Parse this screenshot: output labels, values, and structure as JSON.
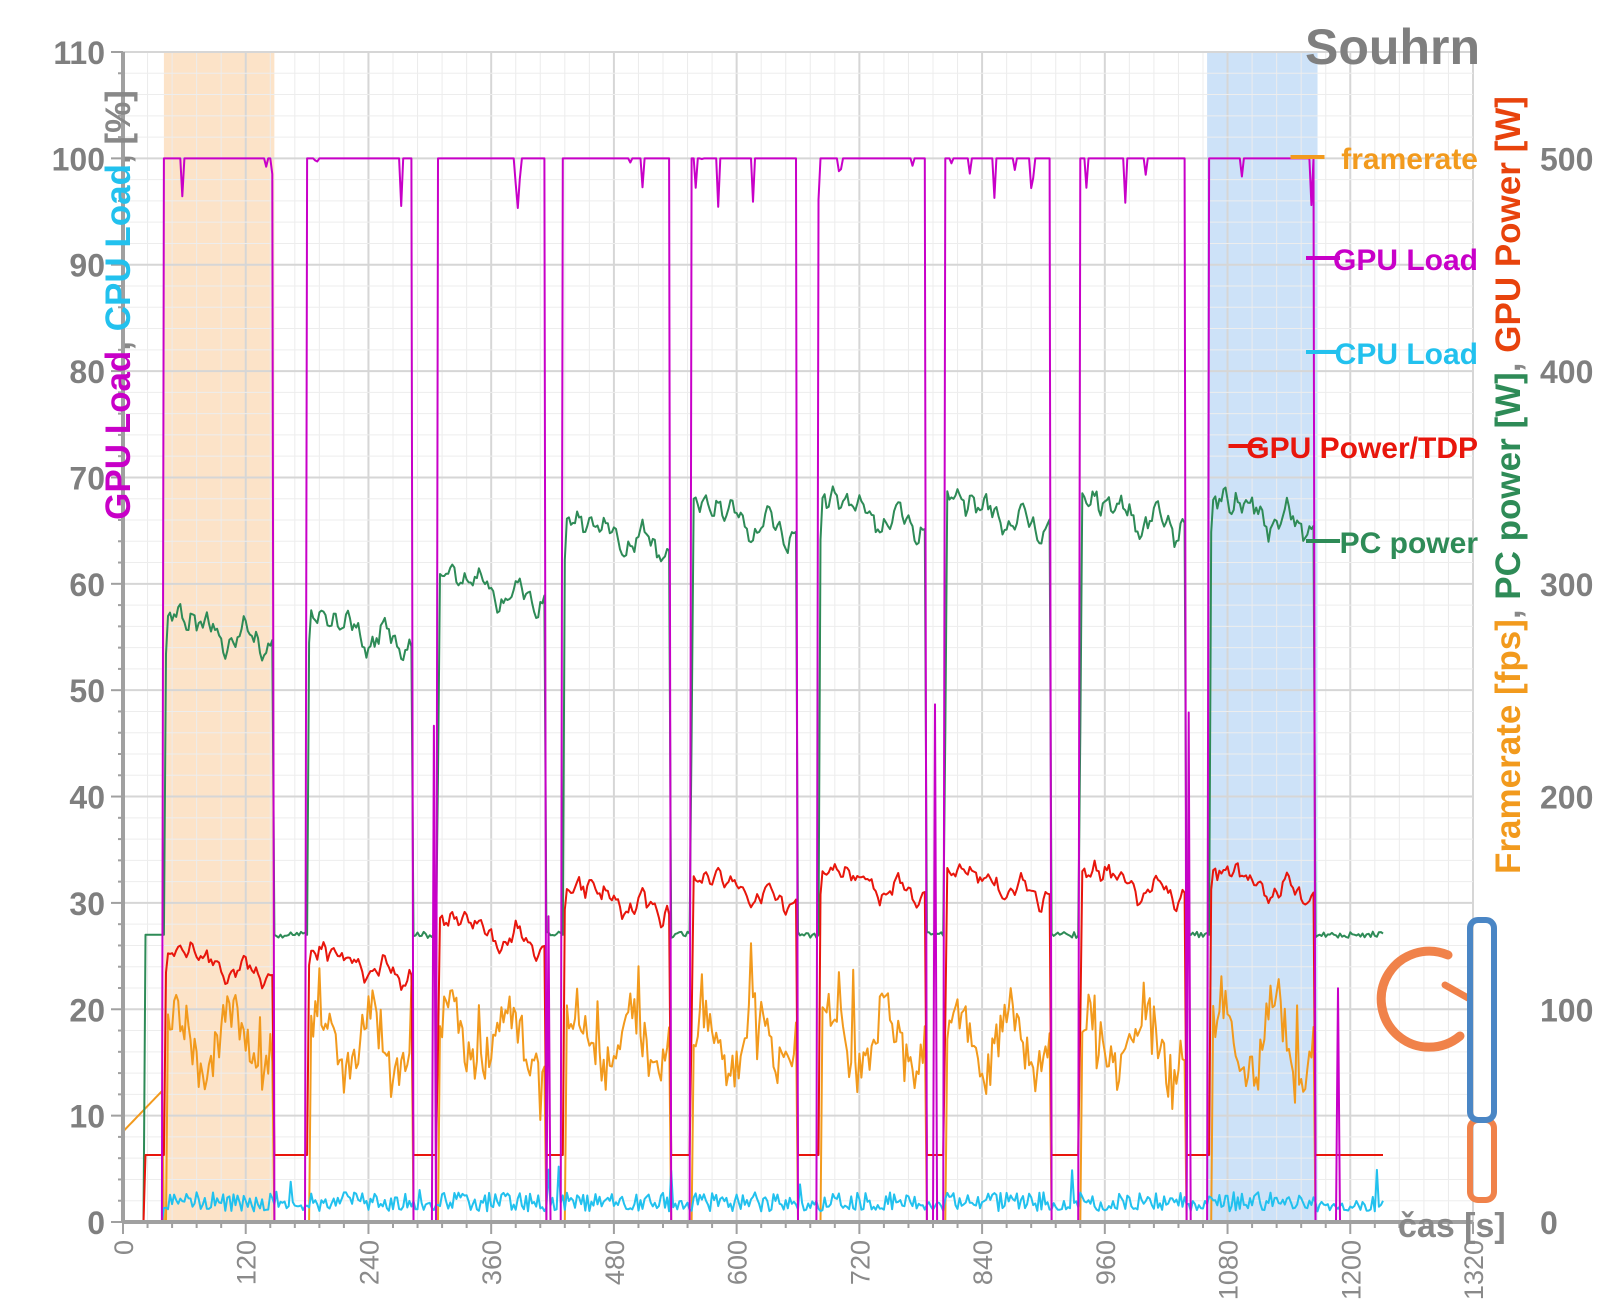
{
  "chart_data": {
    "type": "line",
    "title": "Souhrn",
    "xlabel": "čas [s]",
    "ylabel_left": {
      "parts": [
        {
          "text": "GPU Load",
          "color": "#c800c8"
        },
        {
          "text": ", ",
          "color": "#888888"
        },
        {
          "text": "CPU Load",
          "color": "#22c1ee"
        },
        {
          "text": ", ",
          "color": "#888888"
        },
        {
          "text": "[%]",
          "color": "#888888"
        }
      ]
    },
    "ylabel_right": {
      "parts": [
        {
          "text": "Framerate [fps]",
          "color": "#f29a1d"
        },
        {
          "text": ", ",
          "color": "#888888"
        },
        {
          "text": "PC power [W]",
          "color": "#2e8b57"
        },
        {
          "text": ", ",
          "color": "#888888"
        },
        {
          "text": "GPU Power [W]",
          "color": "#e8430c"
        }
      ]
    },
    "xlim": [
      0,
      1320
    ],
    "x_ticks": [
      "0",
      "120",
      "240",
      "360",
      "480",
      "600",
      "720",
      "840",
      "960",
      "1080",
      "1200",
      "1320"
    ],
    "ylim_left": [
      0,
      110
    ],
    "y_ticks_left": [
      "0",
      "10",
      "20",
      "30",
      "40",
      "50",
      "60",
      "70",
      "80",
      "90",
      "100",
      "110"
    ],
    "ylim_right": [
      0,
      550
    ],
    "y_ticks_right": [
      "0",
      "100",
      "200",
      "300",
      "400",
      "500"
    ],
    "grid": true,
    "legend_position": "right",
    "highlight_bands": [
      {
        "x": [
          40,
          148
        ],
        "color": "#fbd9b6"
      },
      {
        "x": [
          1060,
          1168
        ],
        "color": "#bcd8f5"
      }
    ],
    "segments": [
      {
        "start": 40,
        "end": 146,
        "gpu_power_level": 24.5,
        "pc_power_level": 55
      },
      {
        "start": 180,
        "end": 282,
        "gpu_power_level": 24.5,
        "pc_power_level": 55
      },
      {
        "start": 307,
        "end": 413,
        "gpu_power_level": 27.5,
        "pc_power_level": 59
      },
      {
        "start": 430,
        "end": 535,
        "gpu_power_level": 30.5,
        "pc_power_level": 64
      },
      {
        "start": 555,
        "end": 658,
        "gpu_power_level": 31.5,
        "pc_power_level": 65.5
      },
      {
        "start": 680,
        "end": 785,
        "gpu_power_level": 32,
        "pc_power_level": 66
      },
      {
        "start": 803,
        "end": 906,
        "gpu_power_level": 32,
        "pc_power_level": 66
      },
      {
        "start": 935,
        "end": 1038,
        "gpu_power_level": 32,
        "pc_power_level": 66
      },
      {
        "start": 1062,
        "end": 1165,
        "gpu_power_level": 32,
        "pc_power_level": 66
      }
    ],
    "idle_levels": {
      "gpu_load": 0,
      "cpu_load": 1.5,
      "gpu_power": 6.3,
      "pc_power": 27,
      "framerate": 0
    },
    "series": [
      {
        "name": "framerate",
        "color": "#f29a1d",
        "axis": "right",
        "active_range": [
          50,
          120
        ]
      },
      {
        "name": "GPU Load",
        "color": "#c800c8",
        "axis": "left",
        "active_value": 100
      },
      {
        "name": "CPU Load",
        "color": "#22c1ee",
        "axis": "left",
        "active_range": [
          0.5,
          3.5
        ]
      },
      {
        "name": "GPU Power/TDP",
        "color": "#e8160c",
        "axis": "left",
        "active_range": [
          23,
          35
        ]
      },
      {
        "name": "PC power",
        "color": "#2e8b57",
        "axis": "left",
        "active_range": [
          54,
          70
        ]
      }
    ]
  },
  "watermark": {
    "text": "pctuning",
    "colors": {
      "pc": "#f0824a",
      "tuning": "#4a86c5"
    }
  }
}
